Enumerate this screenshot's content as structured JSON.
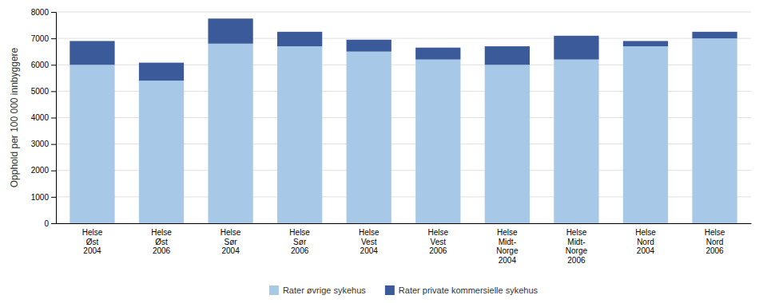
{
  "chart_data": {
    "type": "bar",
    "stacked": true,
    "categories": [
      "Helse\nØst\n2004",
      "Helse\nØst\n2006",
      "Helse\nSør\n2004",
      "Helse\nSør\n2006",
      "Helse\nVest\n2004",
      "Helse\nVest\n2006",
      "Helse\nMidt-\nNorge\n2004",
      "Helse\nMidt-\nNorge\n2006",
      "Helse\nNord\n2004",
      "Helse\nNord\n2006"
    ],
    "series": [
      {
        "name": "Rater øvrige sykehus",
        "color": "#a8c8e8",
        "values": [
          6000,
          5400,
          6800,
          6700,
          6500,
          6200,
          6000,
          6200,
          6700,
          7000
        ]
      },
      {
        "name": "Rater private kommersielle sykehus",
        "color": "#3a5a9a",
        "values": [
          900,
          680,
          950,
          550,
          450,
          450,
          700,
          900,
          200,
          250
        ]
      }
    ],
    "ylabel": "Opphold per 100 000 innbyggere",
    "ylim": [
      0,
      8000
    ],
    "yticks": [
      0,
      1000,
      2000,
      3000,
      4000,
      5000,
      6000,
      7000,
      8000
    ],
    "grid": true,
    "legend": "bottom"
  }
}
